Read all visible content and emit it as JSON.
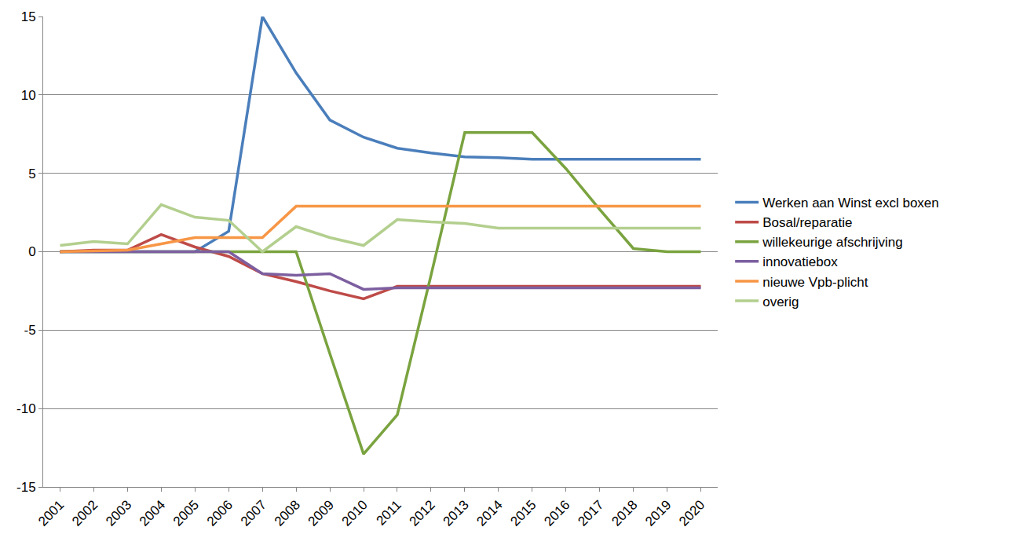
{
  "chart_data": {
    "type": "line",
    "categories": [
      "2001",
      "2002",
      "2003",
      "2004",
      "2005",
      "2006",
      "2007",
      "2008",
      "2009",
      "2010",
      "2011",
      "2012",
      "2013",
      "2014",
      "2015",
      "2016",
      "2017",
      "2018",
      "2019",
      "2020"
    ],
    "series": [
      {
        "name": "Werken aan Winst excl boxen",
        "color": "#4a7ebb",
        "values": [
          0,
          0,
          0,
          0,
          0,
          1.3,
          15,
          11.4,
          8.4,
          7.3,
          6.6,
          6.3,
          6.05,
          6.0,
          5.9,
          5.9,
          5.9,
          5.9,
          5.9,
          5.9
        ]
      },
      {
        "name": "Bosal/reparatie",
        "color": "#be4b48",
        "values": [
          0,
          0.1,
          0.1,
          1.1,
          0.3,
          -0.3,
          -1.4,
          -1.9,
          -2.5,
          -3.0,
          -2.2,
          -2.2,
          -2.2,
          -2.2,
          -2.2,
          -2.2,
          -2.2,
          -2.2,
          -2.2,
          -2.2
        ]
      },
      {
        "name": "willekeurige afschrijving",
        "color": "#7aa33f",
        "values": [
          0,
          0,
          0,
          0,
          0,
          0,
          0,
          0,
          -6.5,
          -12.9,
          -10.4,
          -1.5,
          7.6,
          7.6,
          7.6,
          5.3,
          2.7,
          0.2,
          0,
          0
        ]
      },
      {
        "name": "innovatiebox",
        "color": "#7d5fa0",
        "values": [
          0,
          0,
          0,
          0,
          0,
          0,
          -1.4,
          -1.5,
          -1.4,
          -2.4,
          -2.3,
          -2.3,
          -2.3,
          -2.3,
          -2.3,
          -2.3,
          -2.3,
          -2.3,
          -2.3,
          -2.3
        ]
      },
      {
        "name": "nieuwe Vpb-plicht",
        "color": "#f79646",
        "values": [
          0,
          0.05,
          0.1,
          0.5,
          0.9,
          0.9,
          0.9,
          2.9,
          2.9,
          2.9,
          2.9,
          2.9,
          2.9,
          2.9,
          2.9,
          2.9,
          2.9,
          2.9,
          2.9,
          2.9
        ]
      },
      {
        "name": "overig",
        "color": "#b3cf8e",
        "values": [
          0.4,
          0.65,
          0.5,
          3.0,
          2.2,
          2.0,
          0.0,
          1.6,
          0.9,
          0.4,
          2.05,
          1.9,
          1.8,
          1.5,
          1.5,
          1.5,
          1.5,
          1.5,
          1.5,
          1.5
        ]
      }
    ],
    "ylim": [
      -15,
      15
    ],
    "yticks": [
      -15,
      -10,
      -5,
      0,
      5,
      10,
      15
    ],
    "grid": true,
    "legend": "right"
  }
}
